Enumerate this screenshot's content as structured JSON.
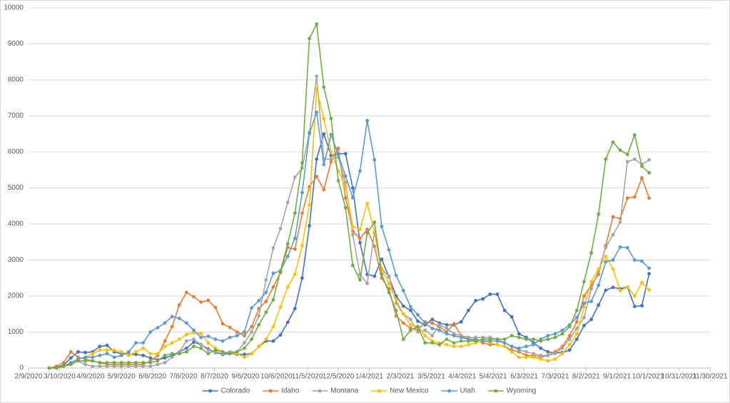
{
  "chart_data": {
    "type": "line",
    "x": [
      "2/29/2020",
      "3/7/2020",
      "3/14/2020",
      "3/21/2020",
      "3/28/2020",
      "4/4/2020",
      "4/11/2020",
      "4/18/2020",
      "4/25/2020",
      "5/2/2020",
      "5/9/2020",
      "5/16/2020",
      "5/23/2020",
      "5/30/2020",
      "6/6/2020",
      "6/13/2020",
      "6/20/2020",
      "6/27/2020",
      "7/4/2020",
      "7/11/2020",
      "7/18/2020",
      "7/25/2020",
      "8/1/2020",
      "8/8/2020",
      "8/15/2020",
      "8/22/2020",
      "8/29/2020",
      "9/5/2020",
      "9/12/2020",
      "9/19/2020",
      "9/26/2020",
      "10/3/2020",
      "10/10/2020",
      "10/17/2020",
      "10/24/2020",
      "10/31/2020",
      "11/7/2020",
      "11/14/2020",
      "11/21/2020",
      "11/28/2020",
      "12/5/2020",
      "12/12/2020",
      "12/19/2020",
      "12/26/2020",
      "1/2/2021",
      "1/9/2021",
      "1/16/2021",
      "1/23/2021",
      "1/30/2021",
      "2/6/2021",
      "2/13/2021",
      "2/20/2021",
      "2/27/2021",
      "3/6/2021",
      "3/13/2021",
      "3/20/2021",
      "3/27/2021",
      "4/3/2021",
      "4/10/2021",
      "4/17/2021",
      "4/24/2021",
      "5/1/2021",
      "5/8/2021",
      "5/15/2021",
      "5/22/2021",
      "5/29/2021",
      "6/5/2021",
      "6/12/2021",
      "6/19/2021",
      "6/26/2021",
      "7/3/2021",
      "7/10/2021",
      "7/17/2021",
      "7/24/2021",
      "7/31/2021",
      "8/7/2021",
      "8/14/2021",
      "8/21/2021",
      "8/28/2021",
      "9/4/2021",
      "9/11/2021",
      "9/18/2021",
      "9/25/2021",
      "10/2/2021"
    ],
    "series": [
      {
        "name": "Colorado",
        "color": "#4472c4",
        "values": [
          0,
          20,
          80,
          280,
          450,
          430,
          450,
          600,
          630,
          450,
          400,
          380,
          380,
          350,
          280,
          230,
          280,
          350,
          450,
          550,
          720,
          650,
          530,
          430,
          380,
          400,
          380,
          380,
          400,
          600,
          750,
          750,
          920,
          1270,
          1650,
          2500,
          3950,
          5800,
          6500,
          5900,
          5950,
          5950,
          5000,
          3480,
          2600,
          2550,
          3020,
          2530,
          2000,
          1720,
          1600,
          1300,
          1200,
          1350,
          1250,
          1200,
          1200,
          1280,
          1600,
          1870,
          1920,
          2050,
          2050,
          1600,
          1420,
          950,
          850,
          700,
          550,
          450,
          420,
          430,
          500,
          800,
          1180,
          1350,
          1750,
          2160,
          2240,
          2200,
          2250,
          1710,
          1730,
          2620
        ]
      },
      {
        "name": "Idaho",
        "color": "#ed7d31",
        "values": [
          0,
          50,
          150,
          450,
          300,
          250,
          200,
          150,
          100,
          100,
          100,
          100,
          100,
          100,
          200,
          350,
          750,
          1150,
          1750,
          2100,
          1980,
          1830,
          1880,
          1680,
          1230,
          1130,
          1000,
          900,
          1150,
          1650,
          1850,
          2250,
          2650,
          3350,
          3300,
          4300,
          5030,
          5320,
          4950,
          5730,
          6100,
          4720,
          3800,
          3600,
          3850,
          3380,
          2500,
          2200,
          1450,
          1250,
          1100,
          1050,
          1280,
          1250,
          1150,
          1000,
          1230,
          900,
          800,
          750,
          700,
          650,
          650,
          600,
          500,
          450,
          350,
          350,
          300,
          350,
          450,
          600,
          900,
          1280,
          2000,
          2300,
          2600,
          3400,
          4200,
          4150,
          4720,
          4750,
          5280,
          4720
        ]
      },
      {
        "name": "Montana",
        "color": "#a5a5a5",
        "values": [
          0,
          0,
          50,
          150,
          200,
          100,
          50,
          50,
          50,
          50,
          50,
          50,
          50,
          50,
          50,
          100,
          150,
          300,
          450,
          750,
          800,
          650,
          500,
          450,
          400,
          450,
          450,
          700,
          1000,
          1450,
          2450,
          3330,
          3870,
          4600,
          5300,
          5550,
          6550,
          8100,
          5800,
          5800,
          5850,
          5150,
          3700,
          2600,
          2350,
          3750,
          2750,
          2550,
          1800,
          1500,
          1350,
          1000,
          1050,
          900,
          1200,
          1100,
          950,
          900,
          850,
          850,
          850,
          850,
          800,
          700,
          600,
          500,
          450,
          400,
          350,
          350,
          400,
          550,
          800,
          1100,
          1400,
          2200,
          2700,
          3350,
          3700,
          4050,
          5730,
          5800,
          5650,
          5780
        ]
      },
      {
        "name": "New Mexico",
        "color": "#ffc000",
        "values": [
          0,
          0,
          50,
          100,
          250,
          300,
          400,
          500,
          500,
          500,
          450,
          350,
          450,
          550,
          400,
          400,
          600,
          700,
          800,
          930,
          980,
          960,
          700,
          550,
          450,
          400,
          400,
          300,
          400,
          600,
          800,
          1150,
          1700,
          2250,
          2600,
          3400,
          4530,
          7760,
          6920,
          6000,
          5480,
          5050,
          3930,
          3850,
          4570,
          3780,
          2750,
          2350,
          1900,
          1500,
          1200,
          1150,
          900,
          750,
          700,
          650,
          600,
          600,
          650,
          700,
          750,
          700,
          650,
          600,
          450,
          300,
          300,
          300,
          250,
          200,
          250,
          400,
          650,
          950,
          1700,
          2400,
          2750,
          3100,
          2750,
          2150,
          2250,
          2000,
          2370,
          2170
        ]
      },
      {
        "name": "Utah",
        "color": "#5b9bd5",
        "values": [
          0,
          0,
          50,
          150,
          250,
          300,
          300,
          350,
          400,
          300,
          350,
          450,
          700,
          700,
          1000,
          1120,
          1250,
          1430,
          1380,
          1250,
          1050,
          850,
          880,
          800,
          750,
          850,
          900,
          1000,
          1670,
          1870,
          2100,
          2630,
          2700,
          3100,
          3600,
          4870,
          6510,
          7100,
          5650,
          6480,
          5920,
          5330,
          4730,
          5470,
          6870,
          5780,
          3930,
          3280,
          2570,
          2150,
          1700,
          1480,
          1250,
          1100,
          1050,
          950,
          900,
          850,
          800,
          800,
          750,
          750,
          750,
          700,
          600,
          550,
          600,
          650,
          800,
          900,
          950,
          1050,
          1200,
          1400,
          1800,
          1850,
          2300,
          2950,
          3000,
          3360,
          3340,
          3000,
          2970,
          2770
        ]
      },
      {
        "name": "Wyoming",
        "color": "#70ad47",
        "values": [
          0,
          0,
          50,
          100,
          200,
          200,
          200,
          150,
          150,
          150,
          150,
          150,
          150,
          150,
          150,
          200,
          350,
          400,
          400,
          450,
          600,
          550,
          400,
          500,
          450,
          400,
          450,
          550,
          800,
          1200,
          1550,
          1900,
          2700,
          3450,
          4300,
          5700,
          9150,
          9550,
          7800,
          6930,
          5200,
          4450,
          2850,
          2450,
          3750,
          4050,
          2600,
          2100,
          1600,
          800,
          1050,
          1150,
          700,
          700,
          650,
          800,
          700,
          750,
          750,
          750,
          800,
          800,
          800,
          800,
          900,
          850,
          800,
          800,
          750,
          800,
          850,
          950,
          1150,
          1600,
          2400,
          3200,
          4270,
          5800,
          6270,
          6050,
          5930,
          6470,
          5600,
          5420
        ]
      }
    ],
    "xlim": [
      "2/9/2020",
      "11/30/2021"
    ],
    "xticks": [
      "2/9/2020",
      "3/10/2020",
      "4/9/2020",
      "5/9/2020",
      "6/8/2020",
      "7/8/2020",
      "8/7/2020",
      "9/6/2020",
      "10/6/2020",
      "11/5/2020",
      "12/5/2020",
      "1/4/2021",
      "2/3/2021",
      "3/5/2021",
      "4/4/2021",
      "5/4/2021",
      "6/3/2021",
      "7/3/2021",
      "8/2/2021",
      "9/1/2021",
      "10/1/2021",
      "10/31/2021",
      "11/30/2021"
    ],
    "ylim": [
      0,
      10000
    ],
    "yticks": [
      0,
      1000,
      2000,
      3000,
      4000,
      5000,
      6000,
      7000,
      8000,
      9000,
      10000
    ],
    "grid": true,
    "legend": "bottom"
  }
}
